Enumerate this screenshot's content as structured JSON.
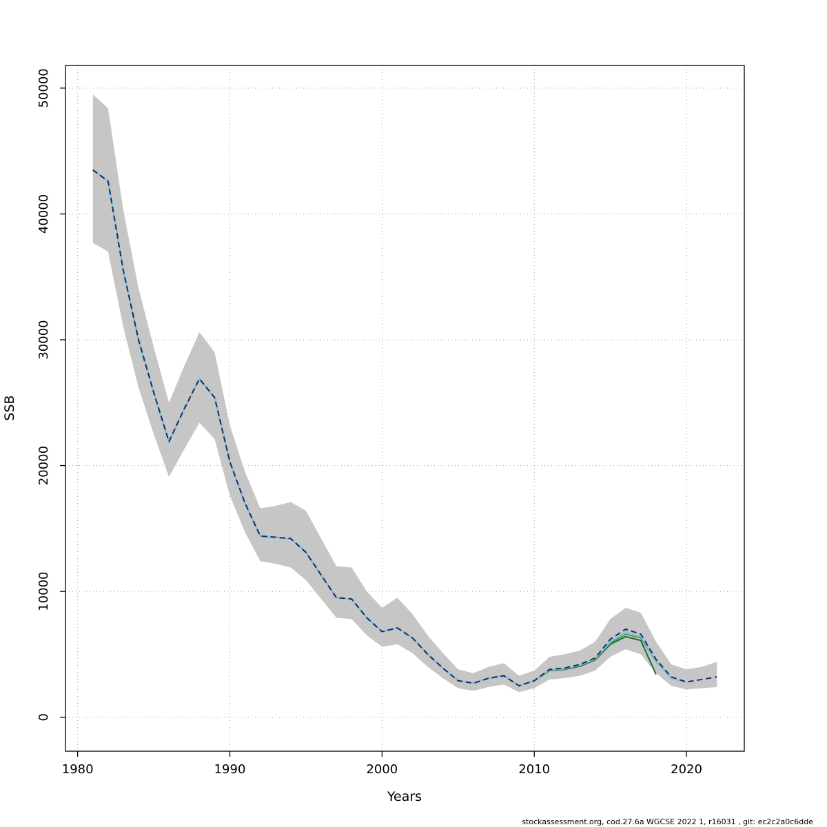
{
  "footer": {
    "text": "stockassessment.org, cod.27.6a WGCSE 2022 1, r16031 , git: ec2c2a0c6dde"
  },
  "chart_data": {
    "type": "line",
    "title": "",
    "xlabel": "Years",
    "ylabel": "SSB",
    "xlim": [
      1979.2,
      2023.8
    ],
    "ylim": [
      -2700,
      51800
    ],
    "x_ticks": [
      1980,
      1990,
      2000,
      2010,
      2020
    ],
    "y_ticks": [
      0,
      10000,
      20000,
      30000,
      40000,
      50000
    ],
    "grid": true,
    "legend_position": "none",
    "years": [
      1981,
      1982,
      1983,
      1984,
      1985,
      1986,
      1987,
      1988,
      1989,
      1990,
      1991,
      1992,
      1993,
      1994,
      1995,
      1996,
      1997,
      1998,
      1999,
      2000,
      2001,
      2002,
      2003,
      2004,
      2005,
      2006,
      2007,
      2008,
      2009,
      2010,
      2011,
      2012,
      2013,
      2014,
      2015,
      2016,
      2017,
      2018,
      2019,
      2020,
      2021,
      2022
    ],
    "band": {
      "name": "confidence-interval",
      "color": "#c6c6c6",
      "upper": [
        49500,
        48400,
        40300,
        34100,
        29400,
        25000,
        27900,
        30600,
        29000,
        23200,
        19500,
        16600,
        16800,
        17100,
        16400,
        14200,
        12000,
        11900,
        10000,
        8700,
        9500,
        8200,
        6500,
        5100,
        3800,
        3500,
        4000,
        4300,
        3300,
        3700,
        4800,
        5000,
        5300,
        6000,
        7800,
        8700,
        8300,
        6000,
        4200,
        3800,
        4000,
        4400
      ],
      "lower": [
        37700,
        37000,
        31000,
        26200,
        22500,
        19100,
        21300,
        23400,
        22100,
        17600,
        14700,
        12400,
        12200,
        11900,
        10900,
        9400,
        7900,
        7800,
        6500,
        5600,
        5800,
        5100,
        4000,
        3100,
        2300,
        2100,
        2400,
        2600,
        2000,
        2300,
        3000,
        3100,
        3300,
        3700,
        4800,
        5400,
        5000,
        3500,
        2500,
        2200,
        2300,
        2400
      ]
    },
    "series": [
      {
        "name": "dark-green",
        "color": "#1d6b33",
        "dash": "solid",
        "values": [
          43500,
          42600,
          35500,
          30000,
          25800,
          21900,
          24500,
          26900,
          25400,
          20300,
          17000,
          14400,
          14300,
          14200,
          13100,
          11300,
          9500,
          9400,
          7900,
          6800,
          7100,
          6300,
          5000,
          3900,
          2900,
          2700,
          3100,
          3300,
          2500,
          2900,
          3700,
          3800,
          4050,
          4550,
          5800,
          6400,
          6100,
          3400,
          null,
          null,
          null,
          null
        ]
      },
      {
        "name": "green",
        "color": "#4a9e3f",
        "dash": "solid",
        "values": [
          43500,
          42600,
          35500,
          30000,
          25800,
          21900,
          24500,
          26900,
          25400,
          20300,
          17000,
          14400,
          14300,
          14200,
          13100,
          11300,
          9500,
          9400,
          7900,
          6800,
          7100,
          6300,
          5000,
          3900,
          2900,
          2700,
          3100,
          3300,
          2500,
          2900,
          3750,
          3850,
          4100,
          4600,
          5900,
          6600,
          6300,
          4450,
          3100,
          null,
          null,
          null
        ]
      },
      {
        "name": "light-blue",
        "color": "#7ac6e6",
        "dash": "solid",
        "values": [
          43500,
          42600,
          35500,
          30000,
          25800,
          21900,
          24500,
          26900,
          25400,
          20300,
          17000,
          14400,
          14300,
          14200,
          13100,
          11300,
          9500,
          9400,
          7900,
          6800,
          7100,
          6300,
          5000,
          3900,
          2900,
          2700,
          3100,
          3300,
          2500,
          2900,
          3750,
          3850,
          4150,
          4650,
          6000,
          6800,
          6400,
          4500,
          3100,
          2750,
          null,
          null
        ]
      },
      {
        "name": "navy-dashed",
        "color": "#1c2a6e",
        "dash": "dashed",
        "values": [
          43500,
          42600,
          35500,
          30000,
          25800,
          21900,
          24500,
          26900,
          25400,
          20300,
          17000,
          14400,
          14300,
          14200,
          13100,
          11300,
          9500,
          9400,
          7900,
          6800,
          7100,
          6300,
          5000,
          3900,
          2900,
          2700,
          3100,
          3300,
          2500,
          2900,
          3800,
          3900,
          4200,
          4700,
          6200,
          7000,
          6600,
          4600,
          3200,
          2800,
          3000,
          3200
        ]
      }
    ]
  }
}
